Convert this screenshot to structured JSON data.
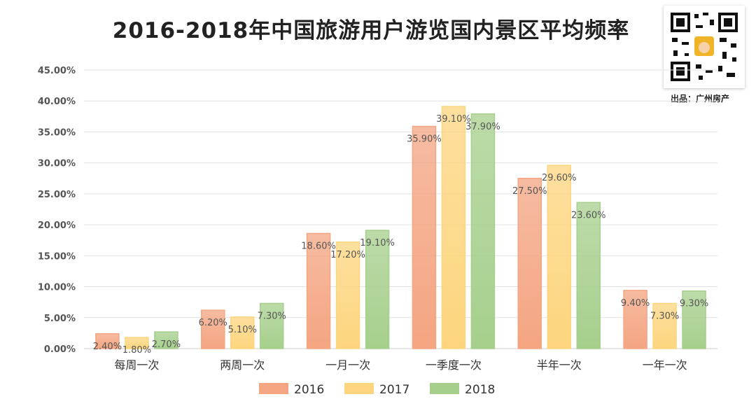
{
  "chart_data": {
    "type": "bar",
    "title": "2016-2018年中国旅游用户游览国内景区平均频率",
    "categories": [
      "每周一次",
      "两周一次",
      "一月一次",
      "一季度一次",
      "半年一次",
      "一年一次"
    ],
    "series": [
      {
        "name": "2016",
        "color": "#f4a582",
        "values": [
          2.4,
          6.2,
          18.6,
          35.9,
          27.5,
          9.4
        ],
        "labels": [
          "2.40%",
          "6.20%",
          "18.60%",
          "35.90%",
          "27.50%",
          "9.40%"
        ]
      },
      {
        "name": "2017",
        "color": "#fdd57e",
        "values": [
          1.8,
          5.1,
          17.2,
          39.1,
          29.6,
          7.3
        ],
        "labels": [
          "1.80%",
          "5.10%",
          "17.20%",
          "39.10%",
          "29.60%",
          "7.30%"
        ]
      },
      {
        "name": "2018",
        "color": "#a6cf8c",
        "values": [
          2.7,
          7.3,
          19.1,
          37.9,
          23.6,
          9.3
        ],
        "labels": [
          "2.70%",
          "7.30%",
          "19.10%",
          "37.90%",
          "23.60%",
          "9.30%"
        ]
      }
    ],
    "ylim": [
      0,
      45
    ],
    "yticks": [
      "0.00%",
      "5.00%",
      "10.00%",
      "15.00%",
      "20.00%",
      "25.00%",
      "30.00%",
      "35.00%",
      "40.00%",
      "45.00%"
    ],
    "grid": true,
    "legend": "bottom"
  },
  "source": "出品：广州房产",
  "qr_code": "qr-code-icon"
}
